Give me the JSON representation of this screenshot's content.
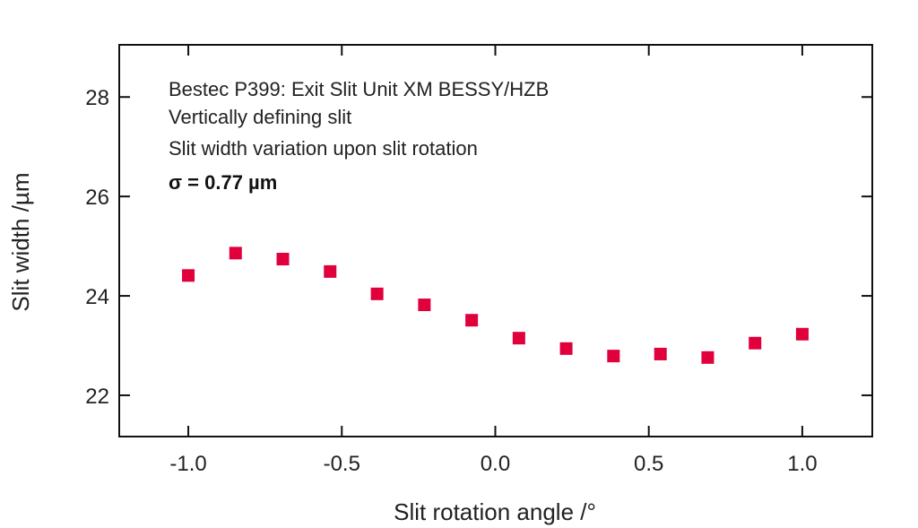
{
  "chart_data": {
    "type": "scatter",
    "title": "",
    "xlabel": "Slit rotation angle /°",
    "ylabel": "Slit width /µm",
    "xlim": [
      -1.225,
      1.228
    ],
    "ylim": [
      21.17,
      29.05
    ],
    "xticks": [
      -1.0,
      -0.5,
      0.0,
      0.5,
      1.0
    ],
    "xtick_labels": [
      "-1.0",
      "-0.5",
      "0.0",
      "0.5",
      "1.0"
    ],
    "yticks": [
      22,
      24,
      26,
      28
    ],
    "ytick_labels": [
      "22",
      "24",
      "26",
      "28"
    ],
    "grid": false,
    "annotations": [
      "Bestec P399: Exit Slit Unit XM BESSY/HZB",
      "Vertically defining slit",
      "Slit width variation upon slit rotation",
      "σ = 0.77 µm"
    ],
    "series": [
      {
        "name": "Slit width",
        "color": "#e0003c",
        "marker": "square",
        "x": [
          -1.0,
          -0.846,
          -0.692,
          -0.538,
          -0.385,
          -0.231,
          -0.077,
          0.077,
          0.231,
          0.385,
          0.538,
          0.692,
          0.846,
          1.0
        ],
        "y": [
          24.41,
          24.86,
          24.74,
          24.49,
          24.04,
          23.82,
          23.51,
          23.15,
          22.94,
          22.79,
          22.83,
          22.76,
          23.05,
          23.23
        ]
      }
    ]
  }
}
